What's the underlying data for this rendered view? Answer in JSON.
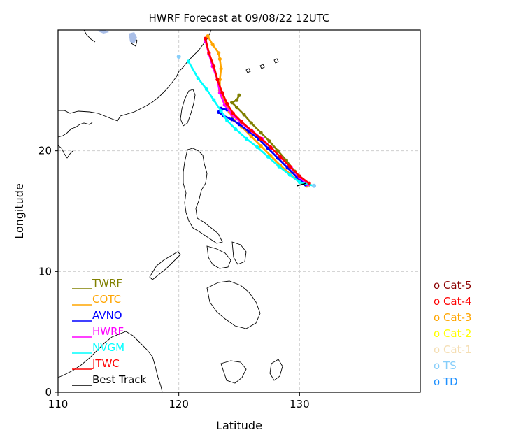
{
  "title": "HWRF Forecast at 09/08/22 12UTC",
  "xlabel": "Latitude",
  "ylabel": "Longitude",
  "x_ticks": [
    "110",
    "120",
    "130"
  ],
  "y_ticks": [
    "0",
    "10",
    "20"
  ],
  "legend": [
    {
      "label": "TWRF",
      "color": "#808000"
    },
    {
      "label": "COTC",
      "color": "#ffa500"
    },
    {
      "label": "AVNO",
      "color": "#0000ff"
    },
    {
      "label": "HWRF",
      "color": "#ff00ff"
    },
    {
      "label": "NVGM",
      "color": "#00ffff"
    },
    {
      "label": "JTWC",
      "color": "#ff0000"
    },
    {
      "label": "Best Track",
      "color": "#000000"
    }
  ],
  "categories": [
    {
      "label": "o Cat-5",
      "color": "#8b0000"
    },
    {
      "label": "o Cat-4",
      "color": "#ff0000"
    },
    {
      "label": "o Cat-3",
      "color": "#ffa500"
    },
    {
      "label": "o Cat-2",
      "color": "#ffff00"
    },
    {
      "label": "o Cat-1",
      "color": "#f5deb3"
    },
    {
      "label": "o TS",
      "color": "#87cefa"
    },
    {
      "label": "o TD",
      "color": "#1e90ff"
    }
  ],
  "chart_data": {
    "type": "line",
    "xlim": [
      110,
      140
    ],
    "ylim": [
      0,
      30
    ],
    "grid": true,
    "legend_position": "lower-left",
    "series": [
      {
        "name": "TWRF",
        "color": "#808000",
        "x": [
          130.8,
          130.2,
          129.6,
          128.9,
          128.2,
          127.5,
          126.8,
          126.0,
          125.4,
          124.8,
          124.4,
          124.8,
          125.0
        ],
        "y": [
          17.2,
          17.6,
          18.3,
          19.2,
          20.0,
          20.8,
          21.5,
          22.3,
          23.0,
          23.6,
          24.0,
          24.2,
          24.6
        ]
      },
      {
        "name": "COTC",
        "color": "#ffa500",
        "x": [
          130.6,
          129.9,
          129.2,
          128.4,
          127.6,
          126.8,
          126.0,
          125.2,
          124.6,
          124.2,
          123.8,
          123.4,
          123.4,
          123.5,
          123.4,
          123.3,
          122.8,
          122.4
        ],
        "y": [
          17.1,
          17.5,
          18.1,
          18.8,
          19.6,
          20.4,
          21.2,
          22.0,
          22.5,
          23.2,
          24.1,
          25.0,
          25.9,
          26.8,
          27.6,
          28.1,
          28.8,
          29.5
        ]
      },
      {
        "name": "AVNO",
        "color": "#0000ff",
        "x": [
          130.5,
          129.8,
          129.0,
          128.2,
          127.4,
          126.6,
          125.8,
          125.0,
          124.4,
          123.7,
          123.3,
          123.5,
          124.0
        ],
        "y": [
          17.2,
          17.8,
          18.6,
          19.4,
          20.2,
          21.0,
          21.6,
          22.2,
          22.6,
          22.9,
          23.2,
          23.5,
          23.4
        ]
      },
      {
        "name": "HWRF",
        "color": "#ff00ff",
        "x": [
          130.7,
          130.0,
          129.3,
          128.5,
          127.7,
          126.9,
          126.1,
          125.2,
          124.4,
          123.8,
          123.4,
          123.2,
          122.8,
          122.5,
          122.2
        ],
        "y": [
          17.2,
          17.8,
          18.6,
          19.4,
          20.2,
          21.0,
          21.6,
          22.3,
          23.0,
          23.8,
          24.8,
          25.9,
          27.0,
          28.0,
          29.1
        ]
      },
      {
        "name": "NVGM",
        "color": "#00ffff",
        "x": [
          131.2,
          130.0,
          129.2,
          128.3,
          127.4,
          126.5,
          125.6,
          124.7,
          124.0,
          123.5,
          122.9,
          122.3,
          121.6,
          120.8
        ],
        "y": [
          17.1,
          17.4,
          18.0,
          18.7,
          19.5,
          20.3,
          21.0,
          21.8,
          22.5,
          23.3,
          24.2,
          25.1,
          26.0,
          27.4
        ]
      },
      {
        "name": "JTWC",
        "color": "#ff0000",
        "x": [
          130.8,
          130.0,
          129.2,
          128.4,
          127.6,
          126.8,
          126.0,
          125.2,
          124.5,
          124.0,
          123.6,
          123.2,
          122.9,
          122.5,
          122.2
        ],
        "y": [
          17.3,
          17.9,
          18.7,
          19.5,
          20.3,
          21.0,
          21.7,
          22.4,
          23.1,
          23.9,
          24.8,
          25.9,
          27.0,
          28.1,
          29.3
        ]
      },
      {
        "name": "Best Track",
        "color": "#000000",
        "x": [
          130.5,
          129.8
        ],
        "y": [
          17.3,
          17.1
        ]
      }
    ]
  }
}
